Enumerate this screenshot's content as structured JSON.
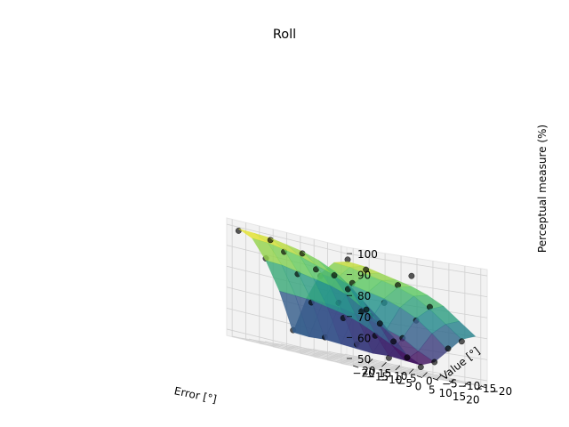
{
  "chart_data": {
    "type": "surface3d",
    "title": "Roll",
    "xlabel": "Error [°]",
    "ylabel": "Value [°]",
    "zlabel": "Perceptual measure (%)",
    "xlim": [
      -22,
      22
    ],
    "ylim": [
      -22,
      22
    ],
    "zlim": [
      47,
      103
    ],
    "xticks": [
      "−20",
      "−15",
      "−10",
      "−5",
      "0",
      "5",
      "10",
      "15",
      "20"
    ],
    "yticks": [
      "−20",
      "−15",
      "−10",
      "−5",
      "0",
      "5",
      "10",
      "15",
      "20"
    ],
    "zticks": [
      "50",
      "60",
      "70",
      "80",
      "90",
      "100"
    ],
    "x": [
      -20,
      -15,
      -10,
      -5,
      0,
      5,
      10,
      15,
      20
    ],
    "y": [
      -20,
      -15,
      -10,
      -5,
      0,
      5,
      10,
      15,
      20
    ],
    "surface_z": [
      [
        72,
        67,
        60,
        53,
        50,
        53,
        60,
        67,
        70
      ],
      [
        80,
        74,
        66,
        57,
        51,
        57,
        67,
        73,
        76
      ],
      [
        86,
        81,
        72,
        61,
        52,
        62,
        73,
        79,
        82
      ],
      [
        90,
        85,
        77,
        65,
        52,
        65,
        77,
        84,
        86
      ],
      [
        93,
        88,
        80,
        68,
        53,
        68,
        80,
        87,
        89
      ],
      [
        95,
        91,
        82,
        70,
        54,
        70,
        82,
        89,
        91
      ],
      [
        97,
        93,
        84,
        72,
        55,
        72,
        84,
        91,
        93
      ],
      [
        98,
        95,
        86,
        73,
        55,
        73,
        86,
        93,
        95
      ],
      [
        99,
        96,
        87,
        74,
        56,
        74,
        87,
        94,
        96
      ]
    ],
    "colormap": [
      "#440154",
      "#3b528b",
      "#21918c",
      "#5ec962",
      "#fde725"
    ],
    "scatter_color": "#000000",
    "points": [
      {
        "x": -20,
        "y": -20,
        "z": 70
      },
      {
        "x": -15,
        "y": -20,
        "z": 65
      },
      {
        "x": -10,
        "y": -20,
        "z": 58
      },
      {
        "x": -5,
        "y": -20,
        "z": 52
      },
      {
        "x": 0,
        "y": -20,
        "z": 49
      },
      {
        "x": 5,
        "y": -20,
        "z": 53
      },
      {
        "x": 10,
        "y": -20,
        "z": 61
      },
      {
        "x": 15,
        "y": -20,
        "z": 66
      },
      {
        "x": -20,
        "y": -10,
        "z": 84
      },
      {
        "x": -15,
        "y": -10,
        "z": 79
      },
      {
        "x": -10,
        "y": -10,
        "z": 70
      },
      {
        "x": -5,
        "y": -10,
        "z": 60
      },
      {
        "x": 0,
        "y": -10,
        "z": 51
      },
      {
        "x": 5,
        "y": -10,
        "z": 62
      },
      {
        "x": 10,
        "y": -10,
        "z": 72
      },
      {
        "x": 15,
        "y": -10,
        "z": 80
      },
      {
        "x": -20,
        "y": 0,
        "z": 92
      },
      {
        "x": -15,
        "y": 0,
        "z": 86
      },
      {
        "x": -5,
        "y": 0,
        "z": 66
      },
      {
        "x": 0,
        "y": 0,
        "z": 55
      },
      {
        "x": 5,
        "y": 0,
        "z": 70
      },
      {
        "x": 10,
        "y": 0,
        "z": 78
      },
      {
        "x": 15,
        "y": 0,
        "z": 88
      },
      {
        "x": 20,
        "y": 0,
        "z": 94
      },
      {
        "x": -20,
        "y": 10,
        "z": 96
      },
      {
        "x": -15,
        "y": 10,
        "z": 92
      },
      {
        "x": -10,
        "y": 10,
        "z": 83
      },
      {
        "x": -5,
        "y": 10,
        "z": 71
      },
      {
        "x": 0,
        "y": 10,
        "z": 56
      },
      {
        "x": 5,
        "y": 10,
        "z": 74
      },
      {
        "x": 10,
        "y": 10,
        "z": 85
      },
      {
        "x": 15,
        "y": 10,
        "z": 93
      },
      {
        "x": -20,
        "y": 20,
        "z": 98
      },
      {
        "x": -10,
        "y": 20,
        "z": 88
      },
      {
        "x": 0,
        "y": 20,
        "z": 57
      },
      {
        "x": 10,
        "y": 20,
        "z": 86
      },
      {
        "x": 20,
        "y": 20,
        "z": 97
      }
    ]
  }
}
